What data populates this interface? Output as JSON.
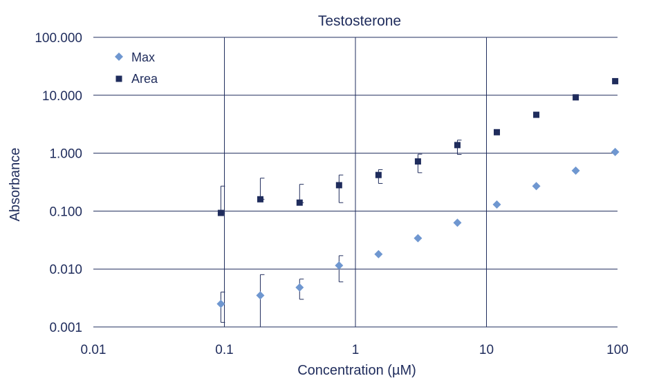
{
  "chart_data": {
    "type": "scatter",
    "title": "Testosterone",
    "xlabel": "Concentration (µM)",
    "ylabel": "Absorbance",
    "x_scale": "log",
    "y_scale": "log",
    "xlim": [
      0.01,
      100
    ],
    "ylim": [
      0.001,
      100
    ],
    "x_ticks": [
      "0.01",
      "0.1",
      "1",
      "10",
      "100"
    ],
    "y_ticks": [
      "0.001",
      "0.010",
      "0.100",
      "1.000",
      "10.000",
      "100.000"
    ],
    "grid": true,
    "legend_position": "top-left",
    "series": [
      {
        "name": "Max",
        "marker": "diamond",
        "color": "#6f97d0",
        "x": [
          0.094,
          0.188,
          0.375,
          0.75,
          1.5,
          3,
          6,
          12,
          24,
          48,
          96
        ],
        "y": [
          0.0025,
          0.0035,
          0.0048,
          0.0115,
          0.018,
          0.034,
          0.063,
          0.13,
          0.27,
          0.5,
          1.05
        ],
        "error_high": [
          0.004,
          0.008,
          0.0067,
          0.017,
          null,
          null,
          null,
          null,
          null,
          null,
          null
        ],
        "error_low": [
          0.0012,
          0.001,
          0.003,
          0.006,
          null,
          null,
          null,
          null,
          null,
          null,
          null
        ]
      },
      {
        "name": "Area",
        "marker": "square",
        "color": "#1f2c5c",
        "x": [
          0.094,
          0.188,
          0.375,
          0.75,
          1.5,
          3,
          6,
          12,
          24,
          48,
          96
        ],
        "y": [
          0.093,
          0.16,
          0.14,
          0.28,
          0.42,
          0.72,
          1.38,
          2.3,
          4.6,
          9.2,
          17.5
        ],
        "error_high": [
          0.27,
          0.37,
          0.29,
          0.42,
          0.52,
          0.96,
          1.68,
          null,
          null,
          null,
          null
        ],
        "error_low": [
          0.093,
          0.16,
          0.14,
          0.14,
          0.3,
          0.46,
          0.95,
          null,
          null,
          null,
          null
        ]
      }
    ]
  }
}
